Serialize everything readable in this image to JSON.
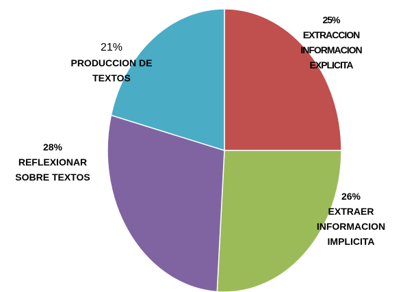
{
  "chart_data": {
    "type": "pie",
    "categories": [
      "EXTRACCION INFORMACION EXPLICITA",
      "EXTRAER INFORMACION IMPLICITA",
      "REFLEXIONAR SOBRE TEXTOS",
      "PRODUCCION DE TEXTOS"
    ],
    "values": [
      25,
      26,
      28,
      21
    ],
    "value_labels": [
      "25%",
      "26%",
      "28%",
      "21%"
    ],
    "colors": [
      "#c0504d",
      "#9bbb59",
      "#8064a2",
      "#4bacc6"
    ]
  }
}
